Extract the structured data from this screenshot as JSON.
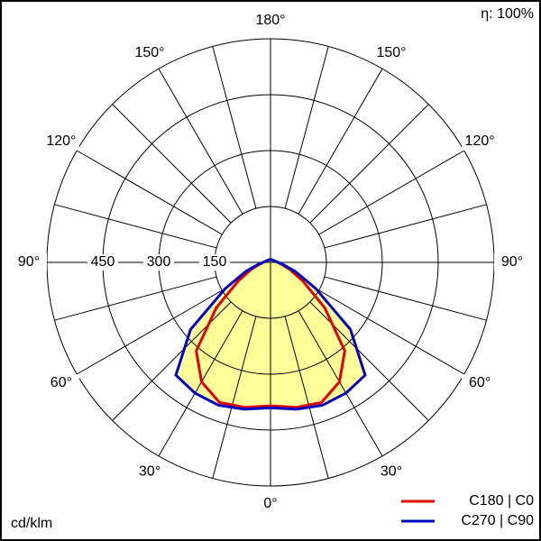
{
  "chart_data": {
    "type": "polar",
    "efficiency_label": "η: 100%",
    "unit_label": "cd/klm",
    "theta": [
      0,
      10,
      20,
      30,
      40,
      50,
      60,
      70,
      80,
      90,
      100,
      110,
      120,
      130,
      140,
      150,
      160,
      170,
      180
    ],
    "series": [
      {
        "name": "C180 | C0",
        "color": "#e00000",
        "values": [
          385,
          395,
          400,
          370,
          310,
          190,
          100,
          55,
          30,
          20,
          14,
          12,
          10,
          9,
          8,
          8,
          8,
          8,
          8
        ]
      },
      {
        "name": "C270 | C90",
        "color": "#0000c0",
        "fill": "#ffff99",
        "values": [
          390,
          400,
          408,
          405,
          395,
          280,
          140,
          70,
          35,
          20,
          14,
          12,
          10,
          9,
          8,
          8,
          8,
          8,
          8
        ]
      }
    ],
    "rlim": [
      0,
      600
    ],
    "rticks": [
      150,
      300,
      450
    ],
    "theta_grid": [
      0,
      15,
      30,
      45,
      60,
      75,
      90,
      105,
      120,
      135,
      150,
      165,
      180
    ],
    "theta_ticks": [
      {
        "value": 0,
        "label": "0°"
      },
      {
        "value": 30,
        "label": "30°"
      },
      {
        "value": 60,
        "label": "60°"
      },
      {
        "value": 90,
        "label": "90°"
      },
      {
        "value": 120,
        "label": "120°"
      },
      {
        "value": 150,
        "label": "150°"
      },
      {
        "value": 180,
        "label": "180°"
      }
    ]
  }
}
